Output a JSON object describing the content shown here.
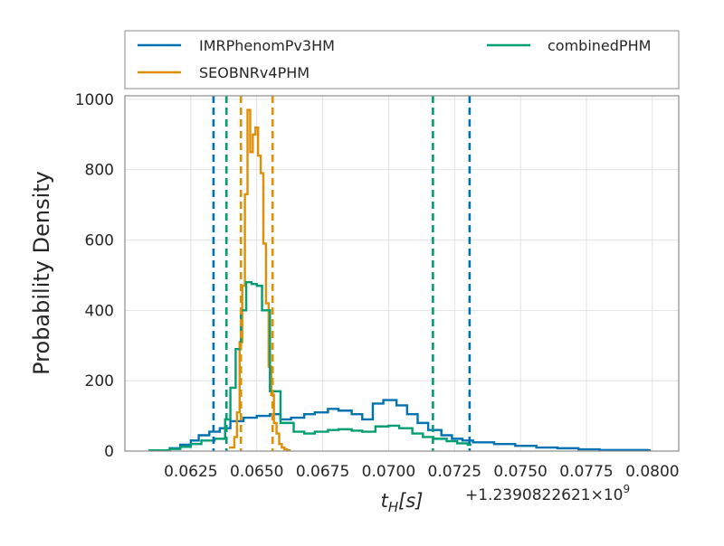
{
  "chart_data": {
    "type": "line",
    "xlabel": "t_H[s]",
    "ylabel": "Probability Density",
    "x_offset_label": "+1.2390822621×10",
    "x_offset_exponent": "9",
    "xlim": [
      0.06,
      0.081
    ],
    "ylim": [
      0,
      1010
    ],
    "xticks": [
      0.0625,
      0.065,
      0.0675,
      0.07,
      0.0725,
      0.075,
      0.0775,
      0.08
    ],
    "xtick_labels": [
      "0.0625",
      "0.0650",
      "0.0675",
      "0.0700",
      "0.0725",
      "0.0750",
      "0.0775",
      "0.0800"
    ],
    "yticks": [
      0,
      200,
      400,
      600,
      800,
      1000
    ],
    "ytick_labels": [
      "0",
      "200",
      "400",
      "600",
      "800",
      "1000"
    ],
    "grid": true,
    "legend": {
      "placement": "top (outside, above axes)",
      "columns": 2
    },
    "series": [
      {
        "name": "IMRPhenomPv3HM",
        "color": "#0072b2",
        "histtype": "step",
        "x": [
          0.0609,
          0.0617,
          0.0621,
          0.0625,
          0.0628,
          0.0632,
          0.0636,
          0.064,
          0.0645,
          0.065,
          0.0655,
          0.0659,
          0.0663,
          0.0668,
          0.0672,
          0.0677,
          0.0681,
          0.0686,
          0.069,
          0.0694,
          0.0698,
          0.0703,
          0.0707,
          0.0711,
          0.0715,
          0.072,
          0.0724,
          0.0728,
          0.0732,
          0.074,
          0.0748,
          0.0756,
          0.0764,
          0.0772,
          0.078,
          0.0798
        ],
        "y": [
          2,
          8,
          18,
          30,
          45,
          55,
          65,
          85,
          95,
          100,
          105,
          90,
          95,
          105,
          110,
          120,
          115,
          105,
          90,
          135,
          145,
          130,
          105,
          80,
          60,
          45,
          35,
          30,
          25,
          20,
          15,
          10,
          8,
          5,
          3,
          2
        ],
        "ci_lines": [
          0.06336,
          0.07307
        ]
      },
      {
        "name": "SEOBNRv4PHM",
        "color": "#de8f05",
        "histtype": "step",
        "x": [
          0.06395,
          0.06415,
          0.06425,
          0.06435,
          0.06445,
          0.06455,
          0.06465,
          0.06475,
          0.06485,
          0.06495,
          0.06505,
          0.06515,
          0.06525,
          0.06535,
          0.06545,
          0.06555,
          0.06565,
          0.06575,
          0.06585,
          0.06595,
          0.06605,
          0.06615
        ],
        "y": [
          10,
          40,
          110,
          310,
          470,
          730,
          970,
          850,
          900,
          920,
          840,
          790,
          590,
          420,
          240,
          160,
          80,
          50,
          20,
          10,
          5,
          2
        ],
        "ci_lines": [
          0.0644,
          0.0656
        ]
      },
      {
        "name": "combinedPHM",
        "color": "#029e73",
        "histtype": "step",
        "x": [
          0.0609,
          0.0617,
          0.0621,
          0.0625,
          0.0629,
          0.0634,
          0.0638,
          0.064,
          0.0642,
          0.0644,
          0.0646,
          0.0648,
          0.065,
          0.0652,
          0.0655,
          0.0659,
          0.0664,
          0.0668,
          0.0672,
          0.0677,
          0.0681,
          0.0686,
          0.069,
          0.0695,
          0.07,
          0.0704,
          0.0709,
          0.0713,
          0.0717,
          0.0722,
          0.0726,
          0.073
        ],
        "y": [
          2,
          6,
          12,
          20,
          30,
          35,
          90,
          180,
          290,
          400,
          480,
          475,
          470,
          400,
          170,
          80,
          55,
          50,
          55,
          60,
          62,
          58,
          55,
          70,
          72,
          65,
          50,
          40,
          35,
          28,
          22,
          18
        ],
        "ci_lines": [
          0.06385,
          0.07168
        ]
      }
    ]
  }
}
